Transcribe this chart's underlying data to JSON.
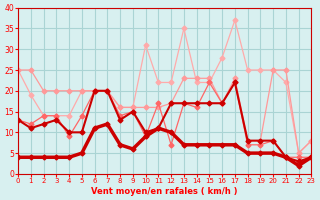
{
  "x": [
    0,
    1,
    2,
    3,
    4,
    5,
    6,
    7,
    8,
    9,
    10,
    11,
    12,
    13,
    14,
    15,
    16,
    17,
    18,
    19,
    20,
    21,
    22,
    23
  ],
  "line1": [
    13,
    11,
    12,
    13,
    10,
    10,
    20,
    20,
    13,
    15,
    10,
    11,
    17,
    17,
    17,
    17,
    17,
    22,
    8,
    8,
    8,
    4,
    3,
    4
  ],
  "line2": [
    4,
    4,
    4,
    4,
    4,
    5,
    11,
    12,
    7,
    6,
    9,
    11,
    10,
    7,
    7,
    7,
    7,
    7,
    5,
    5,
    5,
    4,
    2,
    4
  ],
  "line3": [
    25,
    25,
    20,
    20,
    20,
    20,
    20,
    20,
    16,
    16,
    16,
    16,
    17,
    23,
    23,
    23,
    17,
    23,
    8,
    8,
    25,
    25,
    5,
    8
  ],
  "line4": [
    13,
    12,
    14,
    14,
    9,
    14,
    20,
    20,
    14,
    15,
    9,
    17,
    7,
    17,
    16,
    22,
    17,
    22,
    7,
    7,
    8,
    4,
    4,
    4
  ],
  "line5": [
    25,
    19,
    14,
    14,
    14,
    20,
    20,
    20,
    16,
    16,
    31,
    22,
    22,
    35,
    22,
    22,
    28,
    37,
    25,
    25,
    25,
    22,
    5,
    8
  ],
  "bg_color": "#d8f0f0",
  "grid_color": "#aad4d4",
  "line1_color": "#cc0000",
  "line2_color": "#cc0000",
  "line3_color": "#ff9999",
  "line4_color": "#ff6666",
  "line5_color": "#ffaaaa",
  "xlabel": "Vent moyen/en rafales ( km/h )",
  "ylabel": "",
  "ylim": [
    0,
    40
  ],
  "xlim": [
    0,
    23
  ],
  "yticks": [
    0,
    5,
    10,
    15,
    20,
    25,
    30,
    35,
    40
  ],
  "xticks": [
    0,
    1,
    2,
    3,
    4,
    5,
    6,
    7,
    8,
    9,
    10,
    11,
    12,
    13,
    14,
    15,
    16,
    17,
    18,
    19,
    20,
    21,
    22,
    23
  ]
}
